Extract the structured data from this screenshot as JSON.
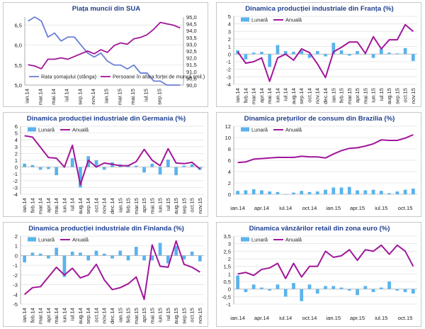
{
  "colors": {
    "title": "#1f3f8f",
    "bar": "#5bb3ec",
    "purple": "#a1169a",
    "blue_line": "#6a7fd6",
    "grid": "#e3e3e3"
  },
  "chart_data": [
    {
      "id": "us",
      "type": "line",
      "title": "Piața muncii din SUA",
      "left_axis": {
        "min": 5.0,
        "max": 6.7,
        "ticks": [
          "6,5",
          "6,0",
          "5,5",
          "5,0"
        ]
      },
      "right_axis": {
        "min": 90.0,
        "max": 95.0,
        "ticks": [
          "95,0",
          "94,5",
          "94,0",
          "93,5",
          "93,0",
          "92,5",
          "92,0",
          "91,5",
          "91,0",
          "90,5",
          "90,0"
        ]
      },
      "x_tick_labels": [
        "ian.14",
        "mar.14",
        "mai.14",
        "iul.14",
        "sep.14",
        "nov.14",
        "ian.15",
        "mar.15",
        "mai.15",
        "iul.15",
        "sep.15"
      ],
      "series": [
        {
          "name": "Rata șomajului (stânga)",
          "axis": "left",
          "color": "#6a7fd6",
          "values": [
            6.6,
            6.7,
            6.6,
            6.2,
            6.3,
            6.1,
            6.2,
            6.2,
            6.0,
            5.8,
            5.7,
            5.8,
            5.6,
            5.5,
            5.5,
            5.4,
            5.5,
            5.3,
            5.3,
            5.1,
            5.1,
            5.0,
            5.0,
            5.0
          ]
        },
        {
          "name": "Persoane în afara forței de muncă (mil.)",
          "axis": "right",
          "color": "#a1169a",
          "values": [
            91.5,
            91.4,
            91.2,
            91.9,
            91.9,
            92.0,
            91.9,
            92.1,
            92.3,
            92.5,
            92.3,
            92.6,
            92.4,
            92.9,
            93.1,
            93.0,
            93.4,
            93.5,
            93.7,
            94.1,
            94.6,
            94.5,
            94.4,
            94.2
          ]
        }
      ]
    },
    {
      "id": "fr",
      "type": "bar+line",
      "title": "Dinamica producției industriale din Franța (%)",
      "y_axis": {
        "min": -4,
        "max": 5,
        "ticks": [
          "5",
          "4",
          "3",
          "2",
          "1",
          "0",
          "-1",
          "-2",
          "-3",
          "-4"
        ]
      },
      "x_tick_labels": [
        "ian.14",
        "feb.14",
        "mar.14",
        "apr.14",
        "mai.14",
        "iun.14",
        "iul.14",
        "aug.14",
        "sep.14",
        "oct.14",
        "nov.14",
        "dec.14",
        "ian.15",
        "feb.15",
        "mar.15",
        "apr.15",
        "mai.15",
        "iun.15",
        "iul.15",
        "aug.15",
        "sep.15",
        "oct.15",
        "nov.15"
      ],
      "legend": [
        "Lunară",
        "Anuală"
      ],
      "bars": [
        0.5,
        -0.7,
        0.2,
        0.3,
        -1.7,
        1.2,
        0.4,
        0.3,
        0.5,
        -0.5,
        0.4,
        -0.3,
        1.5,
        0.5,
        -0.2,
        0.4,
        0.0,
        -0.5,
        0.7,
        0.2,
        0.1,
        0.8,
        -0.9
      ],
      "line": [
        0.3,
        -1.2,
        -1.0,
        -0.5,
        -3.6,
        -0.5,
        0.0,
        -0.8,
        0.7,
        0.2,
        -1.3,
        -3.1,
        0.3,
        0.9,
        1.6,
        1.6,
        0.1,
        2.3,
        0.7,
        1.9,
        1.9,
        3.9,
        3.0
      ]
    },
    {
      "id": "de",
      "type": "bar+line",
      "title": "Dinamica producției industriale din Germania (%)",
      "y_axis": {
        "min": -4,
        "max": 6,
        "ticks": [
          "6",
          "5",
          "4",
          "3",
          "2",
          "1",
          "0",
          "-1",
          "-2",
          "-3",
          "-4"
        ]
      },
      "x_tick_labels": [
        "ian.14",
        "feb.14",
        "mar.14",
        "apr.14",
        "mai.14",
        "iun.14",
        "iul.14",
        "aug.14",
        "sep.14",
        "oct.14",
        "nov.14",
        "dec.14",
        "ian.15",
        "feb.15",
        "mar.15",
        "apr.15",
        "mai.15",
        "iun.15",
        "iul.15",
        "aug.15",
        "sep.15",
        "oct.15",
        "nov.15"
      ],
      "legend": [
        "Lunară",
        "Anuală"
      ],
      "bars": [
        0.5,
        0.3,
        -0.4,
        -0.3,
        -1.2,
        0.0,
        1.3,
        -3.0,
        1.6,
        1.0,
        -0.4,
        0.7,
        0.4,
        0.3,
        0.2,
        -0.8,
        0.5,
        -1.1,
        1.1,
        -1.2,
        0.2,
        0.4,
        -0.4
      ],
      "line": [
        4.6,
        4.4,
        2.9,
        1.4,
        1.3,
        0.0,
        3.2,
        -2.6,
        1.0,
        0.0,
        0.6,
        0.4,
        0.2,
        0.2,
        0.8,
        2.6,
        1.0,
        0.2,
        2.7,
        0.6,
        0.5,
        0.7,
        -0.3
      ]
    },
    {
      "id": "br",
      "type": "bar+line",
      "title": "Dinamica prețurilor de consum din Brazilia (%)",
      "y_axis": {
        "min": 0,
        "max": 12,
        "ticks": [
          "12",
          "10",
          "8",
          "6",
          "4",
          "2",
          "0"
        ]
      },
      "x_tick_labels": [
        "ian.14",
        "apr.14",
        "iul.14",
        "oct.14",
        "ian.15",
        "apr.15",
        "iul.15",
        "oct.15"
      ],
      "legend": [
        "Lunară",
        "Anuală"
      ],
      "bars": [
        0.6,
        0.7,
        0.9,
        0.7,
        0.5,
        0.4,
        0.0,
        0.3,
        0.6,
        0.4,
        0.5,
        0.8,
        1.2,
        1.2,
        1.3,
        0.7,
        0.7,
        0.8,
        0.6,
        0.2,
        0.5,
        0.8,
        1.0
      ],
      "line": [
        5.6,
        5.7,
        6.2,
        6.3,
        6.4,
        6.5,
        6.5,
        6.5,
        6.7,
        6.6,
        6.6,
        6.4,
        7.1,
        7.7,
        8.1,
        8.2,
        8.5,
        8.9,
        9.6,
        9.5,
        9.5,
        9.9,
        10.5
      ]
    },
    {
      "id": "fi",
      "type": "bar+line",
      "title": "Dinamica producției industriale din Finlanda (%)",
      "y_axis": {
        "min": -5,
        "max": 2,
        "ticks": [
          "2",
          "1",
          "0",
          "-1",
          "-2",
          "-3",
          "-4",
          "-5"
        ]
      },
      "x_tick_labels": [
        "ian.14",
        "feb.14",
        "mar.14",
        "apr.14",
        "mai.14",
        "iun.14",
        "iul.14",
        "aug.14",
        "sep.14",
        "oct.14",
        "nov.14",
        "dec.14",
        "ian.15",
        "feb.15",
        "mar.15",
        "apr.15",
        "mai.15",
        "iun.15",
        "iul.15",
        "aug.15",
        "sep.15",
        "oct.15",
        "nov.15"
      ],
      "legend": [
        "Lunară",
        "Anuală"
      ],
      "bars": [
        -0.7,
        0.3,
        0.2,
        -0.3,
        0.8,
        -2.2,
        0.4,
        0.3,
        -0.5,
        0.5,
        0.2,
        -0.3,
        0.5,
        -0.5,
        0.9,
        -0.5,
        -0.5,
        1.3,
        -0.8,
        1.0,
        -0.4,
        0.4,
        -0.6
      ],
      "line": [
        -4.0,
        -3.3,
        -3.2,
        -2.2,
        -1.2,
        -2.0,
        -1.3,
        -2.3,
        -2.0,
        -0.9,
        -2.5,
        -3.5,
        -3.3,
        -2.9,
        -2.2,
        -4.5,
        1.1,
        -1.1,
        -1.2,
        1.5,
        -0.9,
        -1.2,
        -1.7
      ]
    },
    {
      "id": "ez",
      "type": "bar+line",
      "title": "Dinamica vânzărilor retail din zona euro (%)",
      "y_axis": {
        "min": -1.0,
        "max": 3.5,
        "ticks": [
          "3,5",
          "3",
          "2,5",
          "2",
          "1,5",
          "1",
          "0,5",
          "0",
          "-0,5",
          "-1"
        ]
      },
      "x_tick_labels": [
        "ian.14",
        "apr.14",
        "iul.14",
        "oct.14",
        "ian.15",
        "apr.15",
        "iul.15",
        "oct.15"
      ],
      "legend": [
        "Lunară",
        "Anuală"
      ],
      "bars": [
        0.9,
        -0.2,
        0.3,
        0.1,
        -0.1,
        0.3,
        -0.5,
        0.4,
        -0.8,
        0.3,
        -0.3,
        0.2,
        0.2,
        0.1,
        -0.1,
        -0.4,
        0.2,
        -0.2,
        0.1,
        0.5,
        -0.1,
        -0.2,
        -0.3
      ],
      "line": [
        1.0,
        1.1,
        0.9,
        1.3,
        1.4,
        1.7,
        0.7,
        1.7,
        0.8,
        1.5,
        1.5,
        2.5,
        2.1,
        2.2,
        2.6,
        1.9,
        2.6,
        2.5,
        2.9,
        2.3,
        2.9,
        2.5,
        1.5
      ]
    }
  ]
}
